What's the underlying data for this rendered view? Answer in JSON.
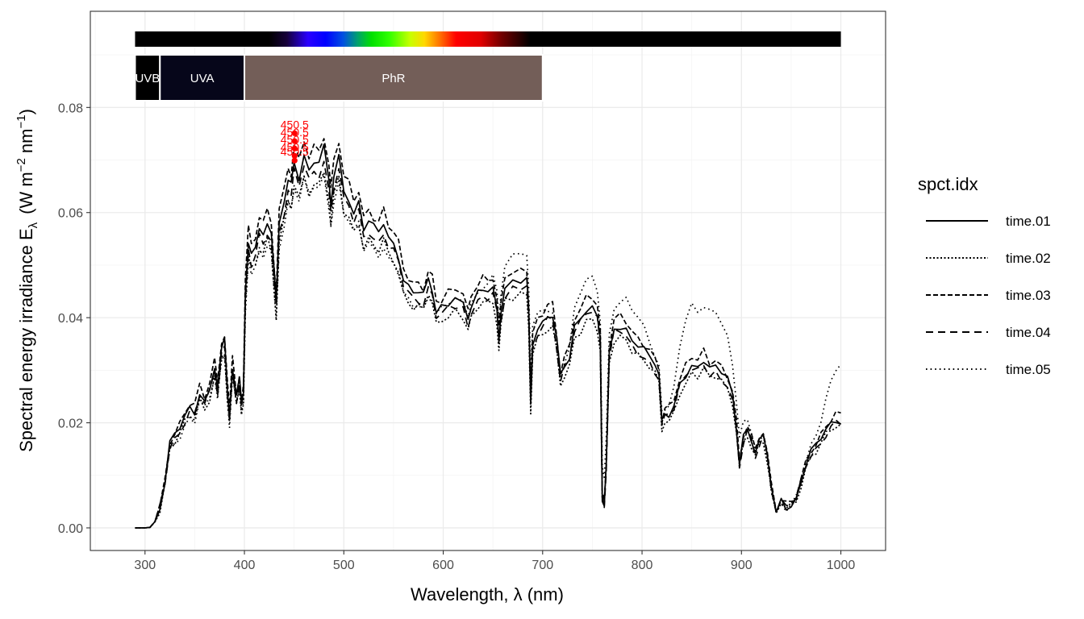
{
  "chart_data": {
    "type": "line",
    "xlabel": "Wavelength, λ (nm)",
    "ylabel": {
      "main": "Spectral  energy  irradiance  E",
      "sub": "λ",
      "unit_open": "(W m",
      "exp1": "−2",
      "unit_mid": " nm",
      "exp2": "−1",
      "unit_close": ")"
    },
    "xlim": [
      245,
      1045
    ],
    "ylim": [
      -0.0043,
      0.0983
    ],
    "x_ticks": [
      300,
      400,
      500,
      600,
      700,
      800,
      900,
      1000
    ],
    "x_tick_labels": [
      "300",
      "400",
      "500",
      "600",
      "700",
      "800",
      "900",
      "1000"
    ],
    "y_ticks": [
      0.0,
      0.02,
      0.04,
      0.06,
      0.08
    ],
    "y_tick_labels": [
      "0.00",
      "0.02",
      "0.04",
      "0.06",
      "0.08"
    ],
    "grid": true,
    "legend": {
      "title": "spct.idx",
      "placement": "right",
      "entries": [
        "time.01",
        "time.02",
        "time.03",
        "time.04",
        "time.05"
      ]
    },
    "band_labels": [
      {
        "label": "UVB",
        "range": [
          290,
          315
        ],
        "color": "#000000"
      },
      {
        "label": "UVA",
        "range": [
          315,
          400
        ],
        "color": "#06061a"
      },
      {
        "label": "PhR",
        "range": [
          400,
          700
        ],
        "color": "#735e58"
      }
    ],
    "color_bar_range": [
      290,
      1000
    ],
    "peak_labels": [
      "450.5",
      "450.5",
      "450.5",
      "450.5",
      "450.5"
    ],
    "peak": {
      "x": 450.5,
      "y": [
        0.0751,
        0.0736,
        0.0722,
        0.0708,
        0.0699
      ]
    },
    "series_x_range": [
      290,
      1000
    ],
    "base_points": [
      [
        290,
        0
      ],
      [
        300,
        0
      ],
      [
        305,
        0.0001
      ],
      [
        310,
        0.0012
      ],
      [
        315,
        0.004
      ],
      [
        320,
        0.009
      ],
      [
        325,
        0.016
      ],
      [
        330,
        0.0175
      ],
      [
        335,
        0.019
      ],
      [
        340,
        0.021
      ],
      [
        345,
        0.0225
      ],
      [
        350,
        0.022
      ],
      [
        355,
        0.026
      ],
      [
        360,
        0.024
      ],
      [
        365,
        0.0265
      ],
      [
        370,
        0.031
      ],
      [
        373,
        0.0265
      ],
      [
        377,
        0.034
      ],
      [
        380,
        0.0355
      ],
      [
        383,
        0.026
      ],
      [
        385,
        0.0215
      ],
      [
        388,
        0.031
      ],
      [
        392,
        0.025
      ],
      [
        395,
        0.028
      ],
      [
        397,
        0.0235
      ],
      [
        399,
        0.026
      ],
      [
        401,
        0.045
      ],
      [
        404,
        0.055
      ],
      [
        407,
        0.052
      ],
      [
        411,
        0.053
      ],
      [
        415,
        0.057
      ],
      [
        419,
        0.056
      ],
      [
        423,
        0.058
      ],
      [
        427,
        0.056
      ],
      [
        430,
        0.048
      ],
      [
        432,
        0.043
      ],
      [
        435,
        0.058
      ],
      [
        440,
        0.062
      ],
      [
        444,
        0.066
      ],
      [
        447,
        0.065
      ],
      [
        450,
        0.0697
      ],
      [
        455,
        0.067
      ],
      [
        460,
        0.071
      ],
      [
        465,
        0.068
      ],
      [
        470,
        0.07
      ],
      [
        475,
        0.0695
      ],
      [
        480,
        0.072
      ],
      [
        485,
        0.066
      ],
      [
        487,
        0.062
      ],
      [
        490,
        0.067
      ],
      [
        495,
        0.0705
      ],
      [
        500,
        0.064
      ],
      [
        505,
        0.063
      ],
      [
        510,
        0.06
      ],
      [
        515,
        0.062
      ],
      [
        520,
        0.057
      ],
      [
        525,
        0.0585
      ],
      [
        530,
        0.057
      ],
      [
        535,
        0.056
      ],
      [
        540,
        0.058
      ],
      [
        545,
        0.055
      ],
      [
        550,
        0.054
      ],
      [
        555,
        0.052
      ],
      [
        560,
        0.0475
      ],
      [
        565,
        0.046
      ],
      [
        570,
        0.045
      ],
      [
        575,
        0.045
      ],
      [
        580,
        0.044
      ],
      [
        585,
        0.047
      ],
      [
        589,
        0.0455
      ],
      [
        593,
        0.0415
      ],
      [
        598,
        0.042
      ],
      [
        605,
        0.043
      ],
      [
        612,
        0.0435
      ],
      [
        620,
        0.043
      ],
      [
        625,
        0.04
      ],
      [
        628,
        0.042
      ],
      [
        635,
        0.0445
      ],
      [
        640,
        0.0455
      ],
      [
        645,
        0.045
      ],
      [
        650,
        0.0455
      ],
      [
        654,
        0.042
      ],
      [
        656,
        0.036
      ],
      [
        658,
        0.041
      ],
      [
        662,
        0.0455
      ],
      [
        670,
        0.047
      ],
      [
        678,
        0.047
      ],
      [
        684,
        0.047
      ],
      [
        686,
        0.041
      ],
      [
        688,
        0.024
      ],
      [
        690,
        0.035
      ],
      [
        695,
        0.038
      ],
      [
        700,
        0.039
      ],
      [
        705,
        0.0405
      ],
      [
        710,
        0.041
      ],
      [
        714,
        0.036
      ],
      [
        718,
        0.0285
      ],
      [
        722,
        0.031
      ],
      [
        727,
        0.033
      ],
      [
        732,
        0.0385
      ],
      [
        738,
        0.04
      ],
      [
        744,
        0.042
      ],
      [
        750,
        0.042
      ],
      [
        755,
        0.0405
      ],
      [
        758,
        0.036
      ],
      [
        760,
        0.006
      ],
      [
        762,
        0.0045
      ],
      [
        764,
        0.012
      ],
      [
        767,
        0.033
      ],
      [
        772,
        0.038
      ],
      [
        778,
        0.0385
      ],
      [
        784,
        0.0375
      ],
      [
        790,
        0.0355
      ],
      [
        796,
        0.0345
      ],
      [
        802,
        0.0335
      ],
      [
        808,
        0.0325
      ],
      [
        813,
        0.031
      ],
      [
        817,
        0.029
      ],
      [
        820,
        0.02
      ],
      [
        823,
        0.0215
      ],
      [
        827,
        0.022
      ],
      [
        832,
        0.0235
      ],
      [
        838,
        0.0275
      ],
      [
        844,
        0.0295
      ],
      [
        850,
        0.031
      ],
      [
        856,
        0.0305
      ],
      [
        862,
        0.032
      ],
      [
        868,
        0.03
      ],
      [
        874,
        0.0305
      ],
      [
        880,
        0.0295
      ],
      [
        886,
        0.028
      ],
      [
        891,
        0.025
      ],
      [
        895,
        0.019
      ],
      [
        898,
        0.0125
      ],
      [
        902,
        0.017
      ],
      [
        906,
        0.0185
      ],
      [
        910,
        0.017
      ],
      [
        914,
        0.0145
      ],
      [
        918,
        0.0165
      ],
      [
        922,
        0.0175
      ],
      [
        926,
        0.014
      ],
      [
        930,
        0.008
      ],
      [
        935,
        0.003
      ],
      [
        940,
        0.005
      ],
      [
        945,
        0.004
      ],
      [
        950,
        0.0045
      ],
      [
        955,
        0.0055
      ],
      [
        960,
        0.009
      ],
      [
        965,
        0.0125
      ],
      [
        970,
        0.0145
      ],
      [
        975,
        0.0155
      ],
      [
        980,
        0.017
      ],
      [
        985,
        0.0185
      ],
      [
        990,
        0.0195
      ],
      [
        995,
        0.0205
      ],
      [
        1000,
        0.0205
      ]
    ],
    "series": [
      {
        "name": "time.01",
        "scale": 1.0,
        "extra": 0,
        "dash": ""
      },
      {
        "name": "time.02",
        "scale": 0.94,
        "extra": 0,
        "dash": "2,2.5"
      },
      {
        "name": "time.03",
        "scale": 1.04,
        "extra": 0,
        "dash": "6,3"
      },
      {
        "name": "time.04",
        "scale": 0.97,
        "extra": 0,
        "dash": "9,6"
      },
      {
        "name": "time.05",
        "scale": 0.93,
        "extra": 1,
        "dash": "1.6,4"
      }
    ]
  }
}
